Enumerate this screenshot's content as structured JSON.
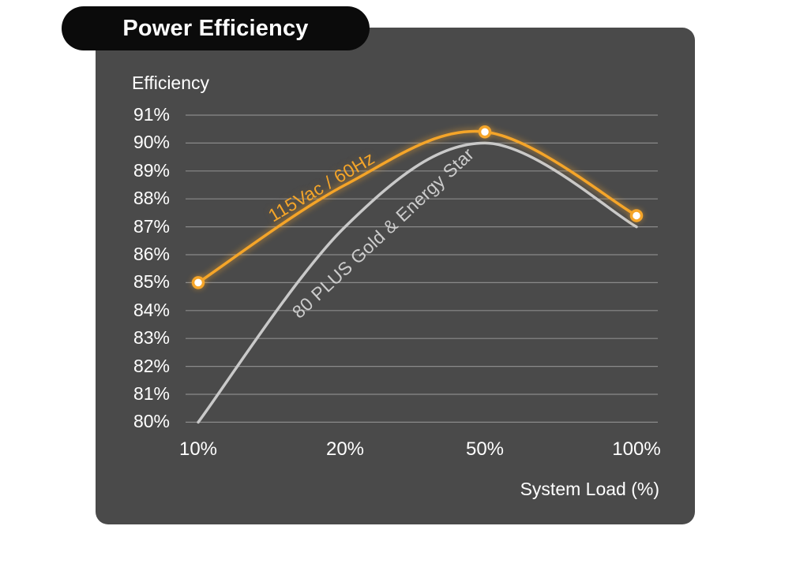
{
  "title_pill": {
    "label": "Power Efficiency"
  },
  "chart_data": {
    "type": "line",
    "title": "Power Efficiency",
    "y_axis": {
      "label": "Efficiency",
      "min": 80,
      "max": 91,
      "tick_step": 1,
      "tick_labels": [
        "91%",
        "90%",
        "89%",
        "88%",
        "87%",
        "86%",
        "85%",
        "84%",
        "83%",
        "82%",
        "81%",
        "80%"
      ]
    },
    "x_axis": {
      "label": "System Load (%)",
      "categories": [
        "10%",
        "20%",
        "50%",
        "100%"
      ]
    },
    "grid": "horizontal gridlines on",
    "legend": "series names drawn as rotated labels along the curves",
    "series": [
      {
        "name": "115Vac / 60Hz",
        "color": "#F5A529",
        "values_pct": [
          85.0,
          88.5,
          90.4,
          87.4
        ],
        "marker_indices": [
          0,
          2,
          3
        ]
      },
      {
        "name": "80 PLUS Gold & Energy Star",
        "color": "#C9C9C9",
        "values_pct": [
          80.0,
          87.0,
          90.0,
          87.0
        ],
        "marker_indices": []
      }
    ]
  },
  "colors": {
    "background": "#FFFFFF",
    "panel": "#4A4A4A",
    "pill": "#0B0B0B",
    "text": "#FFFFFF",
    "gridline": "#929292",
    "accent_orange": "#F5A529",
    "curve_gray": "#C9C9C9",
    "marker_fill": "#FFFFFF"
  }
}
